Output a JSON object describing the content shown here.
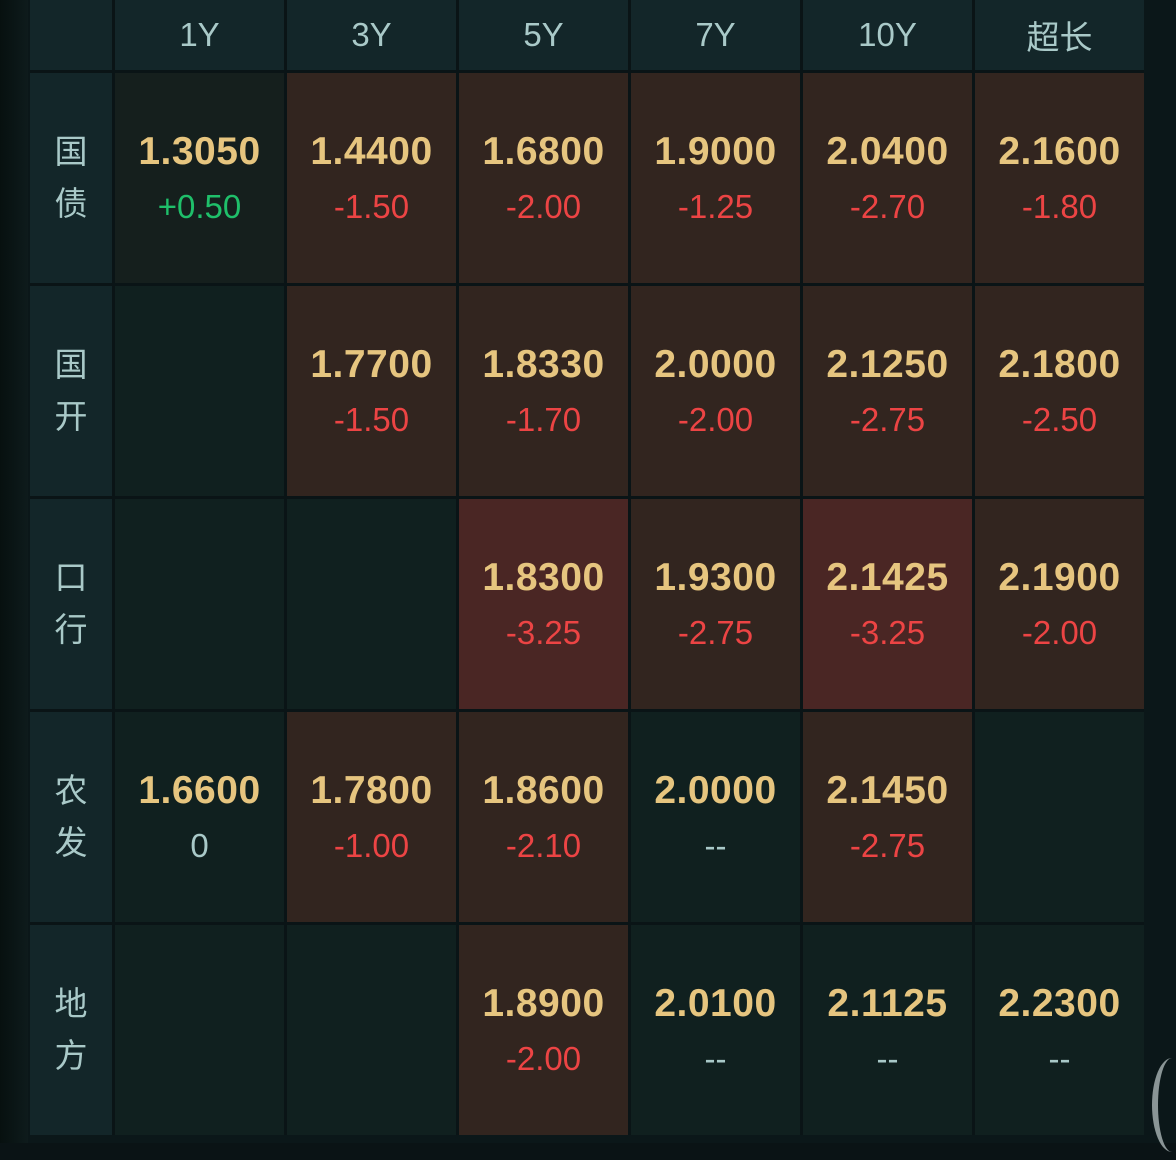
{
  "columns": [
    "1Y",
    "3Y",
    "5Y",
    "7Y",
    "10Y",
    "超长"
  ],
  "colors": {
    "price": "#e6c57f",
    "up": "#1fbf6a",
    "down": "#ec4444",
    "neutral_bg": "#10201f",
    "light_red_bg": "#32251f",
    "strong_red_bg": "#4a2624"
  },
  "rows": [
    {
      "label": [
        "国",
        "债"
      ],
      "cells": [
        {
          "value": "1.3050",
          "change": "+0.50",
          "dir": "up",
          "tone": "dim"
        },
        {
          "value": "1.4400",
          "change": "-1.50",
          "dir": "down",
          "tone": "light"
        },
        {
          "value": "1.6800",
          "change": "-2.00",
          "dir": "down",
          "tone": "light"
        },
        {
          "value": "1.9000",
          "change": "-1.25",
          "dir": "down",
          "tone": "light"
        },
        {
          "value": "2.0400",
          "change": "-2.70",
          "dir": "down",
          "tone": "light"
        },
        {
          "value": "2.1600",
          "change": "-1.80",
          "dir": "down",
          "tone": "light"
        }
      ]
    },
    {
      "label": [
        "国",
        "开"
      ],
      "cells": [
        {
          "value": null,
          "change": null,
          "dir": "flat",
          "tone": "neutral"
        },
        {
          "value": "1.7700",
          "change": "-1.50",
          "dir": "down",
          "tone": "light"
        },
        {
          "value": "1.8330",
          "change": "-1.70",
          "dir": "down",
          "tone": "light"
        },
        {
          "value": "2.0000",
          "change": "-2.00",
          "dir": "down",
          "tone": "light"
        },
        {
          "value": "2.1250",
          "change": "-2.75",
          "dir": "down",
          "tone": "light"
        },
        {
          "value": "2.1800",
          "change": "-2.50",
          "dir": "down",
          "tone": "light"
        }
      ]
    },
    {
      "label": [
        "口",
        "行"
      ],
      "cells": [
        {
          "value": null,
          "change": null,
          "dir": "flat",
          "tone": "neutral"
        },
        {
          "value": null,
          "change": null,
          "dir": "flat",
          "tone": "neutral"
        },
        {
          "value": "1.8300",
          "change": "-3.25",
          "dir": "down",
          "tone": "strong"
        },
        {
          "value": "1.9300",
          "change": "-2.75",
          "dir": "down",
          "tone": "light"
        },
        {
          "value": "2.1425",
          "change": "-3.25",
          "dir": "down",
          "tone": "strong"
        },
        {
          "value": "2.1900",
          "change": "-2.00",
          "dir": "down",
          "tone": "light"
        }
      ]
    },
    {
      "label": [
        "农",
        "发"
      ],
      "cells": [
        {
          "value": "1.6600",
          "change": "0",
          "dir": "flat",
          "tone": "neutral"
        },
        {
          "value": "1.7800",
          "change": "-1.00",
          "dir": "down",
          "tone": "light"
        },
        {
          "value": "1.8600",
          "change": "-2.10",
          "dir": "down",
          "tone": "light"
        },
        {
          "value": "2.0000",
          "change": "--",
          "dir": "flat",
          "tone": "neutral"
        },
        {
          "value": "2.1450",
          "change": "-2.75",
          "dir": "down",
          "tone": "light"
        },
        {
          "value": null,
          "change": null,
          "dir": "flat",
          "tone": "neutral"
        }
      ]
    },
    {
      "label": [
        "地",
        "方"
      ],
      "cells": [
        {
          "value": null,
          "change": null,
          "dir": "flat",
          "tone": "neutral"
        },
        {
          "value": null,
          "change": null,
          "dir": "flat",
          "tone": "neutral"
        },
        {
          "value": "1.8900",
          "change": "-2.00",
          "dir": "down",
          "tone": "light"
        },
        {
          "value": "2.0100",
          "change": "--",
          "dir": "flat",
          "tone": "neutral"
        },
        {
          "value": "2.1125",
          "change": "--",
          "dir": "flat",
          "tone": "neutral"
        },
        {
          "value": "2.2300",
          "change": "--",
          "dir": "flat",
          "tone": "neutral"
        }
      ]
    }
  ]
}
